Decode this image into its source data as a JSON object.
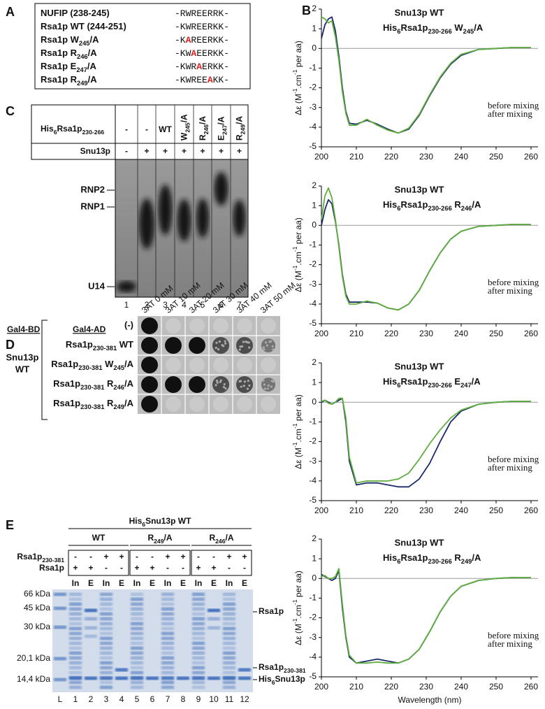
{
  "panel_a": {
    "letter": "A",
    "rows": [
      {
        "label": [
          {
            "text": "NUFIP (238-245)"
          }
        ],
        "seq": [
          {
            "text": "-RWREERRK-"
          }
        ]
      },
      {
        "label": [
          {
            "text": "Rsa1p WT (244-251)"
          }
        ],
        "seq": [
          {
            "text": "-KWREERKK-"
          }
        ]
      },
      {
        "label": [
          {
            "text": "Rsa1p W"
          },
          {
            "text": "245",
            "sub": true
          },
          {
            "text": "/A"
          }
        ],
        "seq": [
          {
            "text": "-K"
          },
          {
            "text": "A",
            "mut": true
          },
          {
            "text": "REERKK-"
          }
        ]
      },
      {
        "label": [
          {
            "text": "Rsa1p R"
          },
          {
            "text": "246",
            "sub": true
          },
          {
            "text": "/A"
          }
        ],
        "seq": [
          {
            "text": "-KW"
          },
          {
            "text": "A",
            "mut": true
          },
          {
            "text": "EERKK-"
          }
        ]
      },
      {
        "label": [
          {
            "text": "Rsa1p E"
          },
          {
            "text": "247",
            "sub": true
          },
          {
            "text": "/A"
          }
        ],
        "seq": [
          {
            "text": "-KWR"
          },
          {
            "text": "A",
            "mut": true
          },
          {
            "text": "ERKK-"
          }
        ]
      },
      {
        "label": [
          {
            "text": "Rsa1p R"
          },
          {
            "text": "249",
            "sub": true
          },
          {
            "text": "/A"
          }
        ],
        "seq": [
          {
            "text": "-KWREE"
          },
          {
            "text": "A",
            "mut": true
          },
          {
            "text": "KK-"
          }
        ]
      }
    ]
  },
  "panel_b": {
    "letter": "B"
  },
  "chart_data": [
    {
      "type": "line",
      "title": "Snu13p WT",
      "subtitle": [
        {
          "text": "His"
        },
        {
          "text": "6",
          "sub": true
        },
        {
          "text": "Rsa1p"
        },
        {
          "text": "230-266",
          "sub": true
        },
        {
          "text": " W"
        },
        {
          "text": "245",
          "sub": true
        },
        {
          "text": "/A"
        }
      ],
      "ylabel": [
        {
          "text": "Δε (M"
        },
        {
          "text": "-1",
          "sup": true
        },
        {
          "text": ".cm"
        },
        {
          "text": "-1",
          "sup": true
        },
        {
          "text": " per aa)"
        }
      ],
      "x": [
        200,
        201,
        202,
        203,
        204,
        205,
        206,
        207,
        208,
        210,
        213,
        216,
        219,
        222,
        225,
        228,
        231,
        234,
        237,
        240,
        245,
        250,
        255,
        260
      ],
      "series": [
        {
          "name": "before mixing",
          "color": "#1b2a6b",
          "values": [
            0.5,
            1.2,
            1.5,
            1.6,
            0.9,
            -0.4,
            -2.0,
            -3.2,
            -3.8,
            -3.85,
            -3.65,
            -3.85,
            -4.1,
            -4.3,
            -4.1,
            -3.4,
            -2.4,
            -1.5,
            -0.8,
            -0.35,
            -0.05,
            0,
            0.05,
            0.05
          ]
        },
        {
          "name": "after mixing",
          "color": "#5fae3e",
          "values": [
            1.6,
            1.5,
            1.3,
            1.4,
            0.6,
            -0.6,
            -2.2,
            -3.3,
            -3.9,
            -3.9,
            -3.6,
            -3.9,
            -4.15,
            -4.3,
            -4.05,
            -3.35,
            -2.35,
            -1.45,
            -0.75,
            -0.3,
            -0.05,
            0,
            0.05,
            0.05
          ]
        }
      ],
      "xlim": [
        200,
        262
      ],
      "xticks": [
        200,
        210,
        220,
        230,
        240,
        250,
        260
      ],
      "ylim": [
        -5,
        2
      ],
      "yticks": [
        -5,
        -4,
        -3,
        -2,
        -1,
        0,
        1,
        2
      ],
      "zero_line": true
    },
    {
      "type": "line",
      "title": "Snu13p WT",
      "subtitle": [
        {
          "text": "His"
        },
        {
          "text": "6",
          "sub": true
        },
        {
          "text": "Rsa1p"
        },
        {
          "text": "230-266",
          "sub": true
        },
        {
          "text": " R"
        },
        {
          "text": "246",
          "sub": true
        },
        {
          "text": "/A"
        }
      ],
      "ylabel": [
        {
          "text": "Δε (M"
        },
        {
          "text": "-1",
          "sup": true
        },
        {
          "text": ".cm"
        },
        {
          "text": "-1",
          "sup": true
        },
        {
          "text": " per aa)"
        }
      ],
      "x": [
        200,
        201,
        202,
        203,
        204,
        205,
        206,
        207,
        208,
        210,
        213,
        216,
        219,
        222,
        225,
        228,
        231,
        234,
        237,
        240,
        245,
        250,
        255,
        260
      ],
      "series": [
        {
          "name": "before mixing",
          "color": "#1b2a6b",
          "values": [
            0,
            0.8,
            1.3,
            1.1,
            0.2,
            -1.0,
            -2.5,
            -3.5,
            -3.9,
            -3.9,
            -3.9,
            -3.95,
            -4.2,
            -4.3,
            -4.0,
            -3.3,
            -2.3,
            -1.4,
            -0.7,
            -0.3,
            -0.05,
            0,
            0.05,
            0.05
          ]
        },
        {
          "name": "after mixing",
          "color": "#5fae3e",
          "values": [
            0.3,
            1.5,
            1.9,
            1.4,
            0.3,
            -1.1,
            -2.6,
            -3.6,
            -4.0,
            -4.0,
            -3.85,
            -3.95,
            -4.2,
            -4.3,
            -4.0,
            -3.3,
            -2.3,
            -1.4,
            -0.7,
            -0.3,
            -0.05,
            0,
            0.05,
            0.05
          ]
        }
      ],
      "xlim": [
        200,
        262
      ],
      "xticks": [
        200,
        210,
        220,
        230,
        240,
        250,
        260
      ],
      "ylim": [
        -5,
        2
      ],
      "yticks": [
        -5,
        -4,
        -3,
        -2,
        -1,
        0,
        1,
        2
      ],
      "zero_line": true
    },
    {
      "type": "line",
      "title": "Snu13p WT",
      "subtitle": [
        {
          "text": "His"
        },
        {
          "text": "6",
          "sub": true
        },
        {
          "text": "Rsa1p"
        },
        {
          "text": "230-266",
          "sub": true
        },
        {
          "text": " E"
        },
        {
          "text": "247",
          "sub": true
        },
        {
          "text": "/A"
        }
      ],
      "ylabel": [
        {
          "text": "Δε (M"
        },
        {
          "text": "-1",
          "sup": true
        },
        {
          "text": ".cm"
        },
        {
          "text": "-1",
          "sup": true
        },
        {
          "text": " per aa)"
        }
      ],
      "x": [
        200,
        201,
        202,
        203,
        204,
        205,
        206,
        207,
        208,
        210,
        213,
        216,
        219,
        222,
        225,
        228,
        231,
        234,
        237,
        240,
        245,
        250,
        255,
        260
      ],
      "series": [
        {
          "name": "before mixing",
          "color": "#1b2a6b",
          "values": [
            0,
            0.1,
            0,
            -0.1,
            0,
            0.1,
            0.2,
            -1.0,
            -3.0,
            -4.2,
            -4.1,
            -4.1,
            -4.2,
            -4.3,
            -4.3,
            -3.9,
            -3.1,
            -2.0,
            -1.0,
            -0.45,
            -0.1,
            0,
            0.05,
            0.05
          ]
        },
        {
          "name": "after mixing",
          "color": "#5fae3e",
          "values": [
            0.05,
            0.1,
            -0.05,
            -0.1,
            0,
            0.2,
            0.2,
            -0.8,
            -2.8,
            -4.1,
            -4.0,
            -4.0,
            -4.0,
            -3.9,
            -3.6,
            -2.9,
            -2.1,
            -1.4,
            -0.8,
            -0.4,
            -0.1,
            0,
            0.05,
            0.05
          ]
        }
      ],
      "xlim": [
        200,
        262
      ],
      "xticks": [
        200,
        210,
        220,
        230,
        240,
        250,
        260
      ],
      "ylim": [
        -5,
        2
      ],
      "yticks": [
        -5,
        -4,
        -3,
        -2,
        -1,
        0,
        1,
        2
      ],
      "zero_line": true
    },
    {
      "type": "line",
      "title": "Snu13p WT",
      "subtitle": [
        {
          "text": "His"
        },
        {
          "text": "6",
          "sub": true
        },
        {
          "text": "Rsa1p"
        },
        {
          "text": "230-266",
          "sub": true
        },
        {
          "text": " R"
        },
        {
          "text": "249",
          "sub": true
        },
        {
          "text": "/A"
        }
      ],
      "ylabel": [
        {
          "text": "Δε (M"
        },
        {
          "text": "-1",
          "sup": true
        },
        {
          "text": ".cm"
        },
        {
          "text": "-1",
          "sup": true
        },
        {
          "text": " per aa)"
        }
      ],
      "xlabel": "Wavelength (nm)",
      "x": [
        200,
        201,
        202,
        203,
        204,
        205,
        206,
        207,
        208,
        210,
        213,
        216,
        219,
        222,
        225,
        228,
        231,
        234,
        237,
        240,
        245,
        250,
        255,
        260
      ],
      "series": [
        {
          "name": "before mixing",
          "color": "#1b2a6b",
          "values": [
            0.2,
            0.1,
            0,
            -0.1,
            0,
            0.4,
            -1.5,
            -3.0,
            -4.0,
            -4.3,
            -4.2,
            -4.1,
            -4.2,
            -4.3,
            -4.1,
            -3.6,
            -2.7,
            -1.7,
            -0.9,
            -0.4,
            -0.1,
            0,
            0.05,
            0.05
          ]
        },
        {
          "name": "after mixing",
          "color": "#5fae3e",
          "values": [
            0.1,
            0.15,
            0,
            0,
            0.1,
            0.5,
            -1.3,
            -2.9,
            -3.9,
            -4.3,
            -4.3,
            -4.25,
            -4.3,
            -4.3,
            -4.1,
            -3.6,
            -2.7,
            -1.7,
            -0.9,
            -0.4,
            -0.1,
            0,
            0.05,
            0.05
          ]
        }
      ],
      "xlim": [
        200,
        262
      ],
      "xticks": [
        200,
        210,
        220,
        230,
        240,
        250,
        260
      ],
      "ylim": [
        -5,
        2
      ],
      "yticks": [
        -5,
        -4,
        -3,
        -2,
        -1,
        0,
        1,
        2
      ],
      "zero_line": true
    }
  ],
  "panel_c": {
    "letter": "C",
    "row_labels": [
      [
        {
          "text": "His"
        },
        {
          "text": "6",
          "sub": true
        },
        {
          "text": "Rsa1p"
        },
        {
          "text": "230-266",
          "sub": true
        }
      ],
      [
        {
          "text": "Snu13p"
        }
      ]
    ],
    "construct": [
      [
        {
          "text": "-"
        }
      ],
      [
        {
          "text": "-"
        }
      ],
      [
        {
          "text": "WT"
        }
      ],
      [
        {
          "text": "W"
        },
        {
          "text": "245",
          "sub": true
        },
        {
          "text": "/A"
        }
      ],
      [
        {
          "text": "R"
        },
        {
          "text": "246",
          "sub": true
        },
        {
          "text": "/A"
        }
      ],
      [
        {
          "text": "E"
        },
        {
          "text": "247",
          "sub": true
        },
        {
          "text": "/A"
        }
      ],
      [
        {
          "text": "R"
        },
        {
          "text": "249",
          "sub": true
        },
        {
          "text": "/A"
        }
      ]
    ],
    "snu13p": [
      "-",
      "+",
      "+",
      "+",
      "+",
      "+",
      "+"
    ],
    "bands": [
      "RNP2",
      "RNP1",
      "U14"
    ],
    "lanes": [
      "1",
      "2",
      "3",
      "4",
      "5",
      "6",
      "7"
    ]
  },
  "panel_d": {
    "letter": "D",
    "bd": "Gal4-BD",
    "ad": "Gal4-AD",
    "columns": [
      "3AT 0 mM",
      "3AT 10 mM",
      "3AT 20 mM",
      "3AT 30 mM",
      "3AT 40 mM",
      "3AT 50 mM"
    ],
    "rows": [
      [
        {
          "text": "(-)"
        }
      ],
      [
        {
          "text": "Rsa1p"
        },
        {
          "text": "230-381",
          "sub": true
        },
        {
          "text": " WT"
        }
      ],
      [
        {
          "text": "Rsa1p"
        },
        {
          "text": "230-381",
          "sub": true
        },
        {
          "text": " W"
        },
        {
          "text": "245",
          "sub": true
        },
        {
          "text": "/A"
        }
      ],
      [
        {
          "text": "Rsa1p"
        },
        {
          "text": "230-381",
          "sub": true
        },
        {
          "text": " R"
        },
        {
          "text": "246",
          "sub": true
        },
        {
          "text": "/A"
        }
      ],
      [
        {
          "text": "Rsa1p"
        },
        {
          "text": "230-381",
          "sub": true
        },
        {
          "text": " R"
        },
        {
          "text": "249",
          "sub": true
        },
        {
          "text": "/A"
        }
      ]
    ],
    "bait": [
      "Snu13p",
      "WT"
    ]
  },
  "panel_e": {
    "letter": "E",
    "construct": [
      {
        "text": "His"
      },
      {
        "text": "6",
        "sub": true
      },
      {
        "text": "Snu13p WT"
      }
    ],
    "groups": [
      [
        {
          "text": "WT"
        }
      ],
      [
        {
          "text": "R"
        },
        {
          "text": "249",
          "sub": true
        },
        {
          "text": "/A"
        }
      ],
      [
        {
          "text": "R"
        },
        {
          "text": "246",
          "sub": true
        },
        {
          "text": "/A"
        }
      ]
    ],
    "row_labels": [
      [
        {
          "text": "Rsa1p"
        },
        {
          "text": "230-381",
          "sub": true
        }
      ],
      [
        {
          "text": "Rsa1p"
        }
      ]
    ],
    "signs": [
      [
        "-",
        "-",
        "+",
        "+",
        "-",
        "-",
        "+",
        "+",
        "-",
        "-",
        "+",
        "+"
      ],
      [
        "+",
        "+",
        "-",
        "-",
        "+",
        "+",
        "-",
        "-",
        "+",
        "+",
        "-",
        "-"
      ]
    ],
    "fractions": [
      "In",
      "E",
      "In",
      "E",
      "In",
      "E",
      "In",
      "E",
      "In",
      "E",
      "In",
      "E"
    ],
    "markers": [
      "66 kDa",
      "45 kDa",
      "30 kDa",
      "20,1 kDa",
      "14,4 kDa"
    ],
    "bands": [
      [
        {
          "text": "Rsa1p"
        }
      ],
      [
        {
          "text": "Rsa1p"
        },
        {
          "text": "230-381",
          "sub": true
        }
      ],
      [
        {
          "text": "His"
        },
        {
          "text": "6",
          "sub": true
        },
        {
          "text": "Snu13p"
        }
      ]
    ],
    "lanes": [
      "L",
      "1",
      "2",
      "3",
      "4",
      "5",
      "6",
      "7",
      "8",
      "9",
      "10",
      "11",
      "12"
    ]
  }
}
